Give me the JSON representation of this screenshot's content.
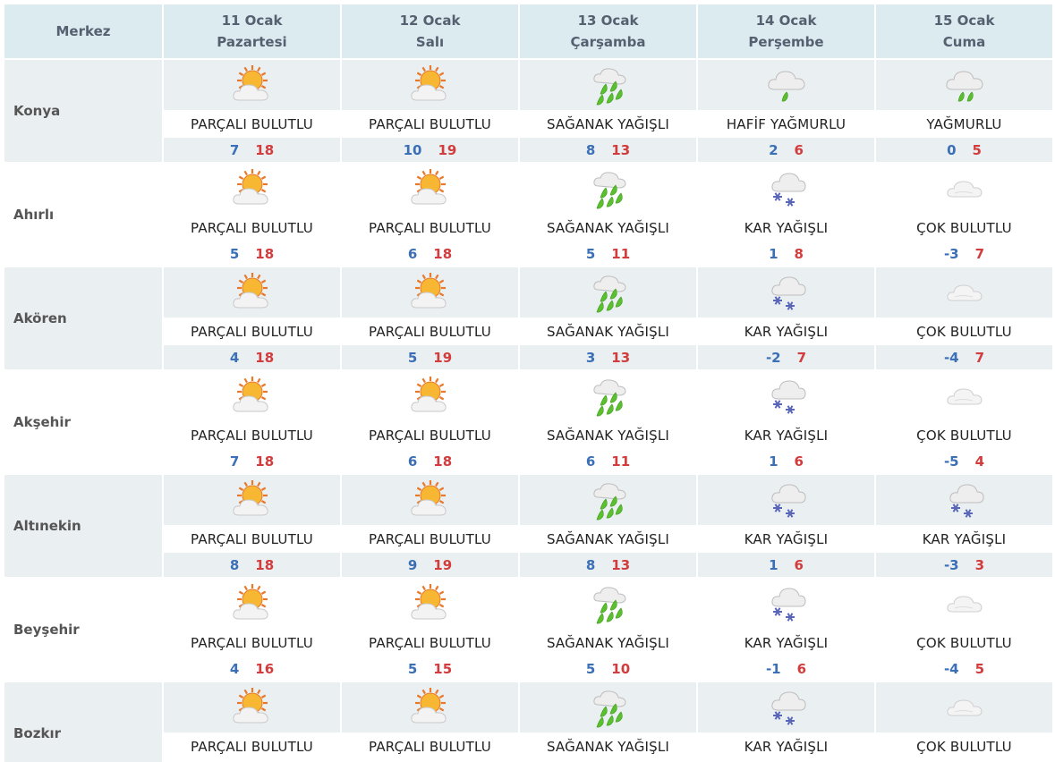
{
  "header": {
    "city_label": "Merkez",
    "days": [
      {
        "date": "11 Ocak",
        "weekday": "Pazartesi"
      },
      {
        "date": "12 Ocak",
        "weekday": "Salı"
      },
      {
        "date": "13 Ocak",
        "weekday": "Çarşamba"
      },
      {
        "date": "14 Ocak",
        "weekday": "Perşembe"
      },
      {
        "date": "15 Ocak",
        "weekday": "Cuma"
      }
    ]
  },
  "icons": {
    "partly_cloudy": "partly-cloudy-icon",
    "showers": "heavy-rain-icon",
    "light_rain": "light-rain-icon",
    "rain": "rain-icon",
    "snow": "snow-icon",
    "cloudy": "cloudy-icon"
  },
  "colors": {
    "header_bg": "#dcebf0",
    "stripe_bg": "#eaeff2",
    "min_temp": "#3b6fb6",
    "max_temp": "#d23c3c"
  },
  "rows": [
    {
      "city": "Konya",
      "days": [
        {
          "icon": "partly_cloudy",
          "desc": "PARÇALI BULUTLU",
          "min": "7",
          "max": "18"
        },
        {
          "icon": "partly_cloudy",
          "desc": "PARÇALI BULUTLU",
          "min": "10",
          "max": "19"
        },
        {
          "icon": "showers",
          "desc": "SAĞANAK YAĞIŞLI",
          "min": "8",
          "max": "13"
        },
        {
          "icon": "light_rain",
          "desc": "HAFİF YAĞMURLU",
          "min": "2",
          "max": "6"
        },
        {
          "icon": "rain",
          "desc": "YAĞMURLU",
          "min": "0",
          "max": "5"
        }
      ]
    },
    {
      "city": "Ahırlı",
      "days": [
        {
          "icon": "partly_cloudy",
          "desc": "PARÇALI BULUTLU",
          "min": "5",
          "max": "18"
        },
        {
          "icon": "partly_cloudy",
          "desc": "PARÇALI BULUTLU",
          "min": "6",
          "max": "18"
        },
        {
          "icon": "showers",
          "desc": "SAĞANAK YAĞIŞLI",
          "min": "5",
          "max": "11"
        },
        {
          "icon": "snow",
          "desc": "KAR YAĞIŞLI",
          "min": "1",
          "max": "8"
        },
        {
          "icon": "cloudy",
          "desc": "ÇOK BULUTLU",
          "min": "-3",
          "max": "7"
        }
      ]
    },
    {
      "city": "Akören",
      "days": [
        {
          "icon": "partly_cloudy",
          "desc": "PARÇALI BULUTLU",
          "min": "4",
          "max": "18"
        },
        {
          "icon": "partly_cloudy",
          "desc": "PARÇALI BULUTLU",
          "min": "5",
          "max": "19"
        },
        {
          "icon": "showers",
          "desc": "SAĞANAK YAĞIŞLI",
          "min": "3",
          "max": "13"
        },
        {
          "icon": "snow",
          "desc": "KAR YAĞIŞLI",
          "min": "-2",
          "max": "7"
        },
        {
          "icon": "cloudy",
          "desc": "ÇOK BULUTLU",
          "min": "-4",
          "max": "7"
        }
      ]
    },
    {
      "city": "Akşehir",
      "days": [
        {
          "icon": "partly_cloudy",
          "desc": "PARÇALI BULUTLU",
          "min": "7",
          "max": "18"
        },
        {
          "icon": "partly_cloudy",
          "desc": "PARÇALI BULUTLU",
          "min": "6",
          "max": "18"
        },
        {
          "icon": "showers",
          "desc": "SAĞANAK YAĞIŞLI",
          "min": "6",
          "max": "11"
        },
        {
          "icon": "snow",
          "desc": "KAR YAĞIŞLI",
          "min": "1",
          "max": "6"
        },
        {
          "icon": "cloudy",
          "desc": "ÇOK BULUTLU",
          "min": "-5",
          "max": "4"
        }
      ]
    },
    {
      "city": "Altınekin",
      "days": [
        {
          "icon": "partly_cloudy",
          "desc": "PARÇALI BULUTLU",
          "min": "8",
          "max": "18"
        },
        {
          "icon": "partly_cloudy",
          "desc": "PARÇALI BULUTLU",
          "min": "9",
          "max": "19"
        },
        {
          "icon": "showers",
          "desc": "SAĞANAK YAĞIŞLI",
          "min": "8",
          "max": "13"
        },
        {
          "icon": "snow",
          "desc": "KAR YAĞIŞLI",
          "min": "1",
          "max": "6"
        },
        {
          "icon": "snow",
          "desc": "KAR YAĞIŞLI",
          "min": "-3",
          "max": "3"
        }
      ]
    },
    {
      "city": "Beyşehir",
      "days": [
        {
          "icon": "partly_cloudy",
          "desc": "PARÇALI BULUTLU",
          "min": "4",
          "max": "16"
        },
        {
          "icon": "partly_cloudy",
          "desc": "PARÇALI BULUTLU",
          "min": "5",
          "max": "15"
        },
        {
          "icon": "showers",
          "desc": "SAĞANAK YAĞIŞLI",
          "min": "5",
          "max": "10"
        },
        {
          "icon": "snow",
          "desc": "KAR YAĞIŞLI",
          "min": "-1",
          "max": "6"
        },
        {
          "icon": "cloudy",
          "desc": "ÇOK BULUTLU",
          "min": "-4",
          "max": "5"
        }
      ]
    },
    {
      "city": "Bozkır",
      "days": [
        {
          "icon": "partly_cloudy",
          "desc": "PARÇALI BULUTLU"
        },
        {
          "icon": "partly_cloudy",
          "desc": "PARÇALI BULUTLU"
        },
        {
          "icon": "showers",
          "desc": "SAĞANAK YAĞIŞLI"
        },
        {
          "icon": "snow",
          "desc": "KAR YAĞIŞLI"
        },
        {
          "icon": "cloudy",
          "desc": "ÇOK BULUTLU"
        }
      ]
    }
  ]
}
